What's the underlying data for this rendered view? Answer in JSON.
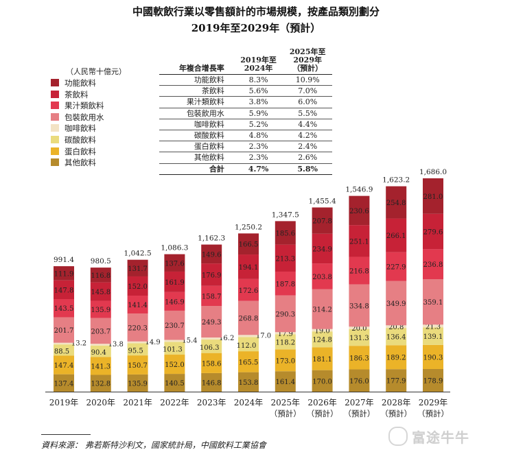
{
  "chart_data": {
    "type": "bar",
    "title": "中國軟飲行業以零售額計的市場規模，按產品類別劃分",
    "subtitle": "2019年至2029年（預計）",
    "ylabel": "（人民幣十億元）",
    "categories": [
      "2019年",
      "2020年",
      "2021年",
      "2022年",
      "2023年",
      "2024年",
      "2025年",
      "2026年",
      "2027年",
      "2028年",
      "2029年"
    ],
    "category_notes": [
      "",
      "",
      "",
      "",
      "",
      "",
      "（預計）",
      "（預計）",
      "（預計）",
      "（預計）",
      "（預計）"
    ],
    "totals": [
      "991.4",
      "980.5",
      "1,042.5",
      "1,086.3",
      "1,162.3",
      "1,250.2",
      "1,347.5",
      "1,455.4",
      "1,546.9",
      "1,623.2",
      "1,686.0"
    ],
    "total_values": [
      991.4,
      980.5,
      1042.5,
      1086.3,
      1162.3,
      1250.2,
      1347.5,
      1455.4,
      1546.9,
      1623.2,
      1686.0
    ],
    "series": [
      {
        "name": "其他飲料",
        "color": "#b68b2c",
        "values": [
          137.4,
          132.8,
          135.9,
          140.5,
          146.8,
          153.8,
          161.4,
          170.0,
          176.0,
          177.9,
          178.9
        ]
      },
      {
        "name": "蛋白飲料",
        "color": "#ebb328",
        "values": [
          147.4,
          141.3,
          150.7,
          152.0,
          158.6,
          165.5,
          173.0,
          181.1,
          186.3,
          189.2,
          190.3
        ]
      },
      {
        "name": "碳酸飲料",
        "color": "#eadb7d",
        "values": [
          88.5,
          90.4,
          95.5,
          101.3,
          106.3,
          112.0,
          118.2,
          124.8,
          131.3,
          136.4,
          139.1
        ]
      },
      {
        "name": "咖啡飲料",
        "color": "#f3e3c4",
        "values": [
          13.2,
          13.8,
          14.9,
          15.4,
          16.2,
          17.0,
          17.9,
          19.0,
          20.0,
          20.8,
          21.3
        ]
      },
      {
        "name": "包裝飲用水",
        "color": "#e67f84",
        "values": [
          201.7,
          203.7,
          220.3,
          230.7,
          249.3,
          268.8,
          290.3,
          314.2,
          334.8,
          349.9,
          359.1
        ]
      },
      {
        "name": "果汁類飲料",
        "color": "#e2394f",
        "values": [
          143.5,
          135.9,
          141.4,
          146.9,
          158.7,
          172.6,
          187.8,
          203.8,
          216.8,
          227.9,
          236.8
        ]
      },
      {
        "name": "茶飲料",
        "color": "#c72237",
        "values": [
          147.8,
          145.8,
          152.0,
          161.9,
          176.9,
          194.1,
          213.3,
          234.9,
          251.1,
          266.1,
          279.6
        ]
      },
      {
        "name": "功能飲料",
        "color": "#a4222d",
        "values": [
          111.9,
          116.8,
          131.7,
          137.6,
          149.6,
          166.5,
          185.6,
          207.8,
          230.6,
          254.8,
          281.0
        ]
      }
    ],
    "legend_order": [
      "功能飲料",
      "茶飲料",
      "果汁類飲料",
      "包裝飲用水",
      "咖啡飲料",
      "碳酸飲料",
      "蛋白飲料",
      "其他飲料"
    ],
    "ylim": [
      0,
      1700
    ],
    "grid": false,
    "legend_position": "left"
  },
  "cagr_table": {
    "header": [
      "年複合增長率",
      "2019年至\n2024年",
      "2025年至\n2029年\n（預計）"
    ],
    "rows": [
      [
        "功能飲料",
        "8.3%",
        "10.9%"
      ],
      [
        "茶飲料",
        "5.6%",
        "7.0%"
      ],
      [
        "果汁類飲料",
        "3.8%",
        "6.0%"
      ],
      [
        "包裝飲用水",
        "5.9%",
        "5.5%"
      ],
      [
        "咖啡飲料",
        "5.2%",
        "4.4%"
      ],
      [
        "碳酸飲料",
        "4.8%",
        "4.2%"
      ],
      [
        "蛋白飲料",
        "2.3%",
        "2.4%"
      ],
      [
        "其他飲料",
        "2.3%",
        "2.6%"
      ]
    ],
    "total": [
      "合計",
      "4.7%",
      "5.8%"
    ]
  },
  "source": "資料來源：  弗若斯特沙利文，國家統計局，中國飲料工業協會",
  "watermark": "富途牛牛"
}
